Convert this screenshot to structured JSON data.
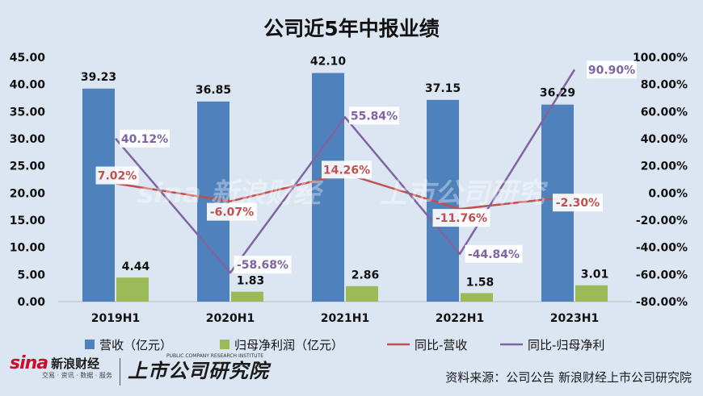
{
  "title": "公司近5年中报业绩",
  "footer": {
    "sina_logo_text": "新浪财经",
    "sina_logo_mark": "sina",
    "sina_sub": "交易 · 资讯 · 数据 · 服务",
    "institute_logo": "上市公司研究院",
    "institute_en": "PUBLIC COMPANY RESEARCH INSTITUTE",
    "source": "资料来源：公司公告 新浪财经上市公司研究院"
  },
  "colors": {
    "background": "#dce6f2",
    "revenue_bar": "#4f81bd",
    "profit_bar": "#9bbb59",
    "revenue_yoy_line": "#c0504d",
    "profit_yoy_line": "#8064a2"
  },
  "chart_data": {
    "type": "bar",
    "title": "公司近5年中报业绩",
    "categories": [
      "2019H1",
      "2020H1",
      "2021H1",
      "2022H1",
      "2023H1"
    ],
    "left_axis": {
      "ylim": [
        0,
        45
      ],
      "ticks": [
        "0.00",
        "5.00",
        "10.00",
        "15.00",
        "20.00",
        "25.00",
        "30.00",
        "35.00",
        "40.00",
        "45.00"
      ]
    },
    "right_axis": {
      "ylim": [
        -80,
        100
      ],
      "unit": "%",
      "ticks": [
        "-80.00%",
        "-60.00%",
        "-40.00%",
        "-20.00%",
        "0.00%",
        "20.00%",
        "40.00%",
        "60.00%",
        "80.00%",
        "100.00%"
      ]
    },
    "series": [
      {
        "name": "营收（亿元）",
        "type": "bar",
        "axis": "left",
        "values": [
          39.23,
          36.85,
          42.1,
          37.15,
          36.29
        ],
        "labels": [
          "39.23",
          "36.85",
          "42.10",
          "37.15",
          "36.29"
        ]
      },
      {
        "name": "归母净利润（亿元）",
        "type": "bar",
        "axis": "left",
        "values": [
          4.44,
          1.83,
          2.86,
          1.58,
          3.01
        ],
        "labels": [
          "4.44",
          "1.83",
          "2.86",
          "1.58",
          "3.01"
        ]
      },
      {
        "name": "同比-营收",
        "type": "line",
        "axis": "right",
        "values": [
          7.02,
          -6.07,
          14.26,
          -11.76,
          -2.3
        ],
        "labels": [
          "7.02%",
          "-6.07%",
          "14.26%",
          "-11.76%",
          "-2.30%"
        ]
      },
      {
        "name": "同比-归母净利",
        "type": "line",
        "axis": "right",
        "values": [
          40.12,
          -58.68,
          55.84,
          -44.84,
          90.9
        ],
        "labels": [
          "40.12%",
          "-58.68%",
          "55.84%",
          "-44.84%",
          "90.90%"
        ]
      }
    ],
    "legend_position": "bottom",
    "grid": false
  }
}
